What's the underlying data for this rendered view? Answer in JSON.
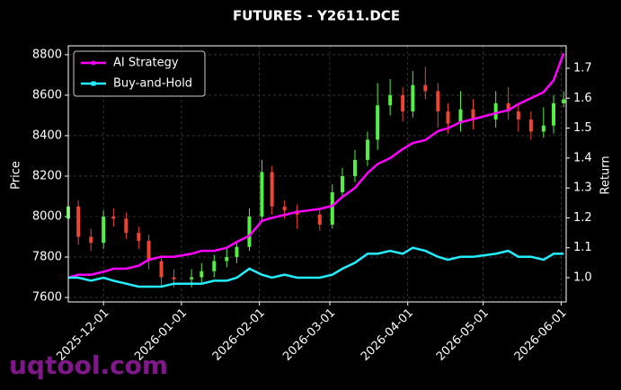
{
  "chart_data": {
    "type": "candlestick",
    "title": "FUTURES - Y2611.DCE",
    "ylabel": "Price",
    "y2label": "Return",
    "watermark": "uqtool.com",
    "x": [
      "2025-11-17",
      "2025-11-21",
      "2025-11-26",
      "2025-12-01",
      "2025-12-05",
      "2025-12-10",
      "2025-12-15",
      "2025-12-19",
      "2025-12-24",
      "2025-12-29",
      "2026-01-05",
      "2026-01-09",
      "2026-01-14",
      "2026-01-19",
      "2026-01-23",
      "2026-01-28",
      "2026-02-02",
      "2026-02-06",
      "2026-02-11",
      "2026-02-16",
      "2026-02-25",
      "2026-03-02",
      "2026-03-06",
      "2026-03-11",
      "2026-03-16",
      "2026-03-20",
      "2026-03-25",
      "2026-03-30",
      "2026-04-03",
      "2026-04-08",
      "2026-04-13",
      "2026-04-17",
      "2026-04-22",
      "2026-04-27",
      "2026-05-06",
      "2026-05-11",
      "2026-05-15",
      "2026-05-20",
      "2026-05-25",
      "2026-05-29",
      "2026-06-02"
    ],
    "open": [
      7990,
      8050,
      7900,
      7870,
      8000,
      7990,
      7920,
      7880,
      7780,
      7700,
      7690,
      7700,
      7730,
      7780,
      7800,
      7850,
      8000,
      8220,
      8050,
      8030,
      8010,
      7960,
      8120,
      8200,
      8280,
      8380,
      8550,
      8600,
      8520,
      8650,
      8620,
      8520,
      8460,
      8530,
      8480,
      8560,
      8520,
      8480,
      8420,
      8450,
      8560
    ],
    "high": [
      8090,
      8080,
      7940,
      8030,
      8040,
      8020,
      7950,
      7910,
      7810,
      7740,
      7740,
      7770,
      7810,
      7840,
      7880,
      8040,
      8280,
      8250,
      8080,
      8060,
      8040,
      8160,
      8240,
      8330,
      8420,
      8660,
      8680,
      8640,
      8720,
      8740,
      8660,
      8560,
      8620,
      8580,
      8620,
      8640,
      8560,
      8520,
      8540,
      8600,
      8620
    ],
    "low": [
      7950,
      7860,
      7830,
      7840,
      7950,
      7890,
      7840,
      7740,
      7650,
      7650,
      7650,
      7670,
      7700,
      7750,
      7770,
      7830,
      7980,
      8010,
      7990,
      7940,
      7930,
      7940,
      8090,
      8170,
      8250,
      8330,
      8500,
      8470,
      8490,
      8580,
      8440,
      8410,
      8420,
      8430,
      8440,
      8480,
      8420,
      8380,
      8390,
      8410,
      8540
    ],
    "close": [
      8050,
      7900,
      7870,
      8000,
      7990,
      7920,
      7880,
      7780,
      7700,
      7690,
      7700,
      7730,
      7780,
      7800,
      7850,
      8000,
      8220,
      8050,
      8030,
      8010,
      7960,
      8120,
      8200,
      8280,
      8380,
      8550,
      8600,
      8520,
      8650,
      8620,
      8520,
      8460,
      8530,
      8480,
      8560,
      8520,
      8480,
      8420,
      8450,
      8560,
      8580
    ],
    "up_color": "#55ee44",
    "down_color": "#ee4433",
    "series": [
      {
        "name": "AI Strategy",
        "color": "#ff00ff",
        "axis": "y2",
        "values": [
          1.0,
          1.01,
          1.01,
          1.02,
          1.03,
          1.03,
          1.04,
          1.06,
          1.07,
          1.07,
          1.08,
          1.09,
          1.09,
          1.1,
          1.12,
          1.14,
          1.19,
          1.2,
          1.21,
          1.22,
          1.23,
          1.24,
          1.27,
          1.3,
          1.35,
          1.38,
          1.4,
          1.43,
          1.45,
          1.46,
          1.49,
          1.5,
          1.52,
          1.53,
          1.55,
          1.56,
          1.58,
          1.6,
          1.62,
          1.66,
          1.75
        ]
      },
      {
        "name": "Buy-and-Hold",
        "color": "#22eeff",
        "axis": "y2",
        "values": [
          1.0,
          1.0,
          0.99,
          1.0,
          0.99,
          0.98,
          0.97,
          0.97,
          0.97,
          0.98,
          0.98,
          0.98,
          0.99,
          0.99,
          1.0,
          1.03,
          1.01,
          1.0,
          1.01,
          1.0,
          1.0,
          1.01,
          1.03,
          1.05,
          1.08,
          1.08,
          1.09,
          1.08,
          1.1,
          1.09,
          1.07,
          1.06,
          1.07,
          1.07,
          1.08,
          1.09,
          1.07,
          1.07,
          1.06,
          1.08,
          1.08
        ]
      }
    ],
    "xlim": [
      "2025-11-17",
      "2026-06-03"
    ],
    "xticks": [
      "2025-12-01",
      "2026-01-01",
      "2026-02-01",
      "2026-03-01",
      "2026-04-01",
      "2026-05-01",
      "2026-06-01"
    ],
    "ylim": [
      7578,
      8844
    ],
    "yticks": [
      7600,
      7800,
      8000,
      8200,
      8400,
      8600,
      8800
    ],
    "y2lim": [
      0.919,
      1.775
    ],
    "y2ticks": [
      {
        "value": 1,
        "label": "1.0"
      },
      1.1,
      1.2,
      1.3,
      1.4,
      1.5,
      1.6,
      1.7
    ],
    "grid": true,
    "legend": "upper left"
  }
}
